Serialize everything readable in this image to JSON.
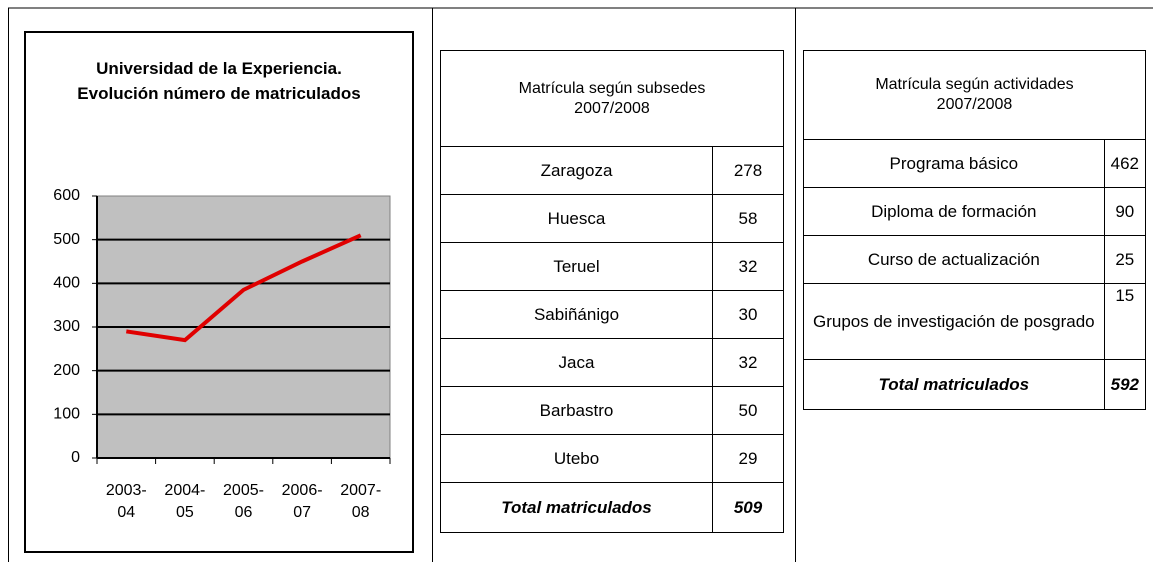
{
  "chart_data": {
    "type": "line",
    "title": "Universidad de la Experiencia. Evolución número de matriculados",
    "categories": [
      "2003-04",
      "2004-05",
      "2005-06",
      "2006-07",
      "2007-08"
    ],
    "series": [
      {
        "color": "#e00000",
        "values": [
          290,
          270,
          385,
          450,
          510
        ]
      }
    ],
    "ylim": [
      0,
      600
    ],
    "yticks": [
      0,
      100,
      200,
      300,
      400,
      500,
      600
    ],
    "grid": true
  },
  "table1": {
    "title": "Matrícula según subsedes",
    "year": "2007/2008",
    "rows": [
      [
        "Zaragoza",
        "278"
      ],
      [
        "Huesca",
        "58"
      ],
      [
        "Teruel",
        "32"
      ],
      [
        "Sabiñánigo",
        "30"
      ],
      [
        "Jaca",
        "32"
      ],
      [
        "Barbastro",
        "50"
      ],
      [
        "Utebo",
        "29"
      ]
    ],
    "total": [
      "Total matriculados",
      "509"
    ]
  },
  "table2": {
    "title": "Matrícula según actividades",
    "year": "2007/2008",
    "rows": [
      [
        "Programa básico",
        "462"
      ],
      [
        "Diploma de formación",
        "90"
      ],
      [
        "Curso de actualización",
        "25"
      ],
      [
        "Grupos de investigación de posgrado",
        "15"
      ]
    ],
    "total": [
      "Total matriculados",
      "592"
    ]
  }
}
